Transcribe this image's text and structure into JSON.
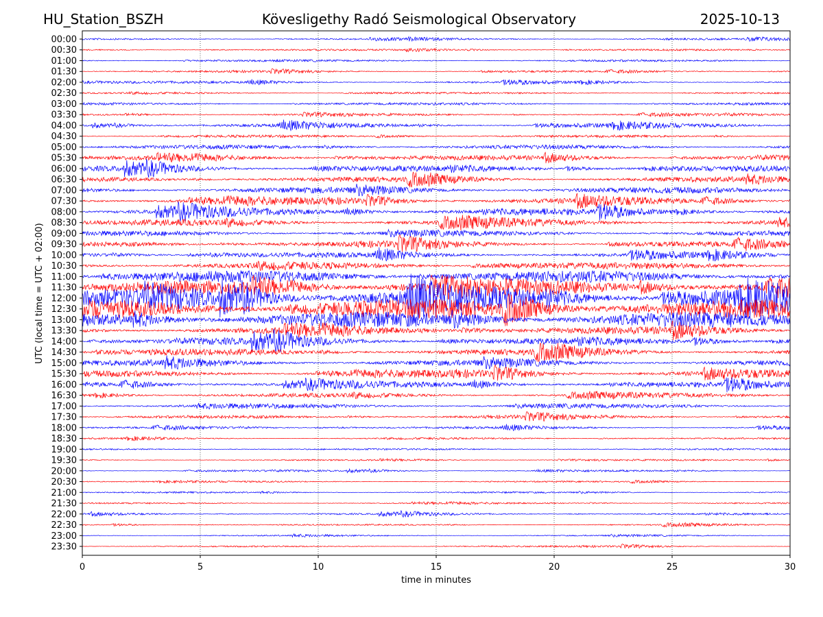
{
  "header": {
    "station": "HU_Station_BSZH",
    "title": "Kövesligethy Radó Seismological Observatory",
    "date": "2025-10-13"
  },
  "chart_data": {
    "type": "line",
    "title": "Kövesligethy Radó Seismological Observatory",
    "xlabel": "time in minutes",
    "ylabel": "UTC (local time = UTC + 02:00)",
    "xlim": [
      0,
      30
    ],
    "xticks": [
      "0",
      "5",
      "10",
      "15",
      "20",
      "25",
      "30"
    ],
    "grid": "vertical dotted at 5-minute ticks",
    "series_colors": [
      "#0000ff",
      "#ff0000"
    ],
    "rows": [
      "00:00",
      "00:30",
      "01:00",
      "01:30",
      "02:00",
      "02:30",
      "03:00",
      "03:30",
      "04:00",
      "04:30",
      "05:00",
      "05:30",
      "06:00",
      "06:30",
      "07:00",
      "07:30",
      "08:00",
      "08:30",
      "09:00",
      "09:30",
      "10:00",
      "10:30",
      "11:00",
      "11:30",
      "12:00",
      "12:30",
      "13:00",
      "13:30",
      "14:00",
      "14:30",
      "15:00",
      "15:30",
      "16:00",
      "16:30",
      "17:00",
      "17:30",
      "18:00",
      "18:30",
      "19:00",
      "19:30",
      "20:00",
      "20:30",
      "21:00",
      "21:30",
      "22:00",
      "22:30",
      "23:00",
      "23:30"
    ],
    "relative_amplitude": [
      0.08,
      0.08,
      0.1,
      0.08,
      0.1,
      0.08,
      0.12,
      0.1,
      0.18,
      0.12,
      0.2,
      0.22,
      0.25,
      0.25,
      0.3,
      0.3,
      0.3,
      0.3,
      0.25,
      0.25,
      0.22,
      0.3,
      0.55,
      0.65,
      0.9,
      0.9,
      0.75,
      0.35,
      0.3,
      0.3,
      0.3,
      0.3,
      0.25,
      0.2,
      0.2,
      0.15,
      0.1,
      0.08,
      0.08,
      0.07,
      0.07,
      0.07,
      0.08,
      0.07,
      0.08,
      0.07,
      0.07,
      0.07
    ]
  }
}
